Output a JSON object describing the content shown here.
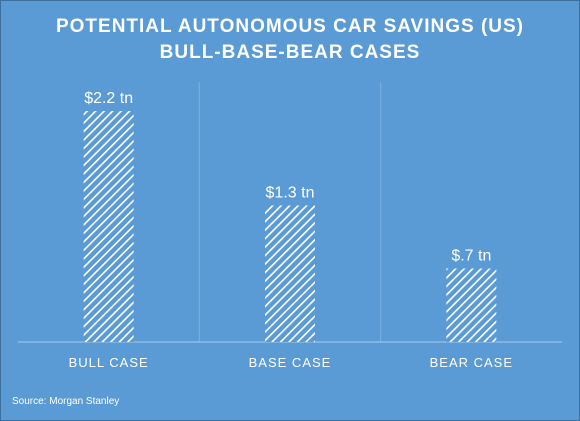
{
  "chart_data": {
    "type": "bar",
    "title": "POTENTIAL  AUTONOMOUS CAR SAVINGS (US)",
    "subtitle": "BULL-BASE-BEAR  CASES",
    "categories": [
      "BULL CASE",
      "BASE CASE",
      "BEAR CASE"
    ],
    "values": [
      2.2,
      1.3,
      0.7
    ],
    "data_labels": [
      "$2.2 tn",
      "$1.3 tn",
      "$.7 tn"
    ],
    "ylim": [
      0,
      2.4
    ],
    "grid": false,
    "source": "Source: Morgan Stanley",
    "colors": {
      "background": "#5b9bd5",
      "bar_fill": "#ffffff",
      "text": "#ffffff",
      "dividers": "#7fb0de"
    }
  }
}
